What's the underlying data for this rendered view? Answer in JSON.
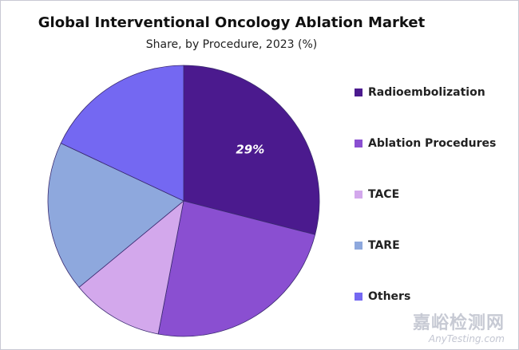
{
  "chart_data": {
    "type": "pie",
    "title": "Global Interventional Oncology Ablation Market",
    "subtitle": "Share, by Procedure, 2023 (%)",
    "slices": [
      {
        "name": "Radioembolization",
        "value": 29,
        "color": "#4b1a8e",
        "label": "29%"
      },
      {
        "name": "Ablation Procedures",
        "value": 24,
        "color": "#8a4fd1",
        "label": ""
      },
      {
        "name": "TACE",
        "value": 11,
        "color": "#d3a8ec",
        "label": ""
      },
      {
        "name": "TARE",
        "value": 18,
        "color": "#8ea8dd",
        "label": ""
      },
      {
        "name": "Others",
        "value": 18,
        "color": "#7468f2",
        "label": ""
      }
    ],
    "legend_position": "right",
    "start_angle_deg": 0,
    "direction": "clockwise"
  },
  "watermark": {
    "cn": "嘉峪检测网",
    "en": "AnyTesting.com"
  }
}
